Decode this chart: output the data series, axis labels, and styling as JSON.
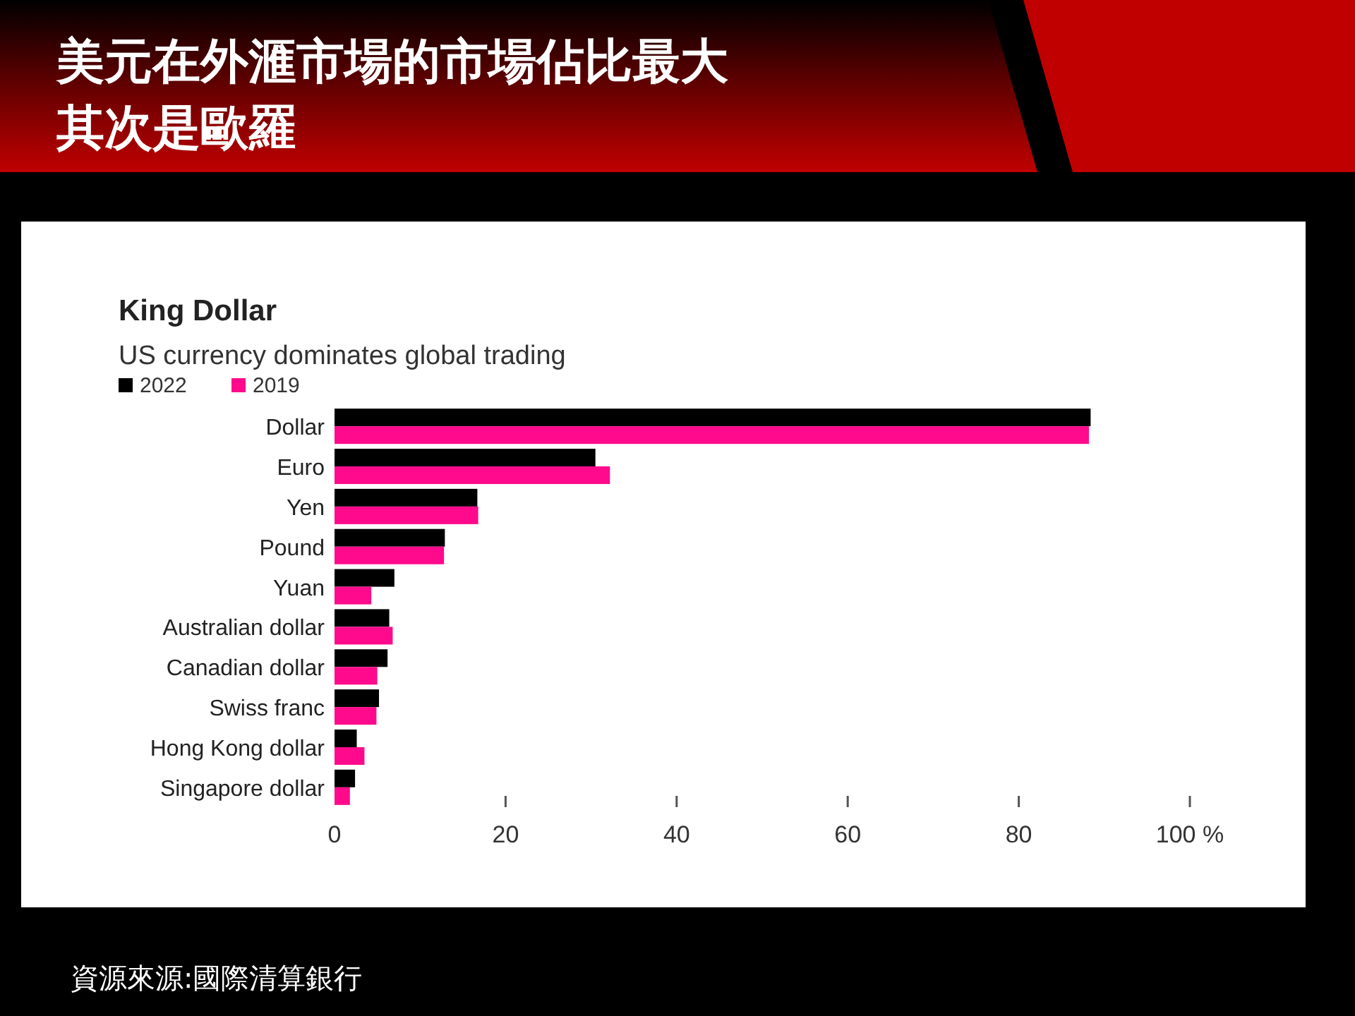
{
  "chart_data": {
    "type": "bar",
    "orientation": "horizontal",
    "title": "King Dollar",
    "subtitle": "US currency dominates global trading",
    "annotations": [
      "美元在外滙市場的市場佔比最大",
      "其次是歐羅",
      "資源來源:國際清算銀行"
    ],
    "categories": [
      "Dollar",
      "Euro",
      "Yen",
      "Pound",
      "Yuan",
      "Australian dollar",
      "Canadian dollar",
      "Swiss franc",
      "Hong Kong dollar",
      "Singapore dollar"
    ],
    "series": [
      {
        "name": "2022",
        "color": "#000000",
        "values": [
          88.4,
          30.5,
          16.7,
          12.9,
          7.0,
          6.4,
          6.2,
          5.2,
          2.6,
          2.4
        ]
      },
      {
        "name": "2019",
        "color": "#ff0a8c",
        "values": [
          88.2,
          32.2,
          16.8,
          12.8,
          4.3,
          6.8,
          5.0,
          4.9,
          3.5,
          1.8
        ]
      }
    ],
    "xlim": [
      0,
      100
    ],
    "xticks": [
      0,
      20,
      40,
      60,
      80,
      {
        "value": 100,
        "label": "100 %"
      }
    ],
    "legend": "top left",
    "grid": false
  }
}
